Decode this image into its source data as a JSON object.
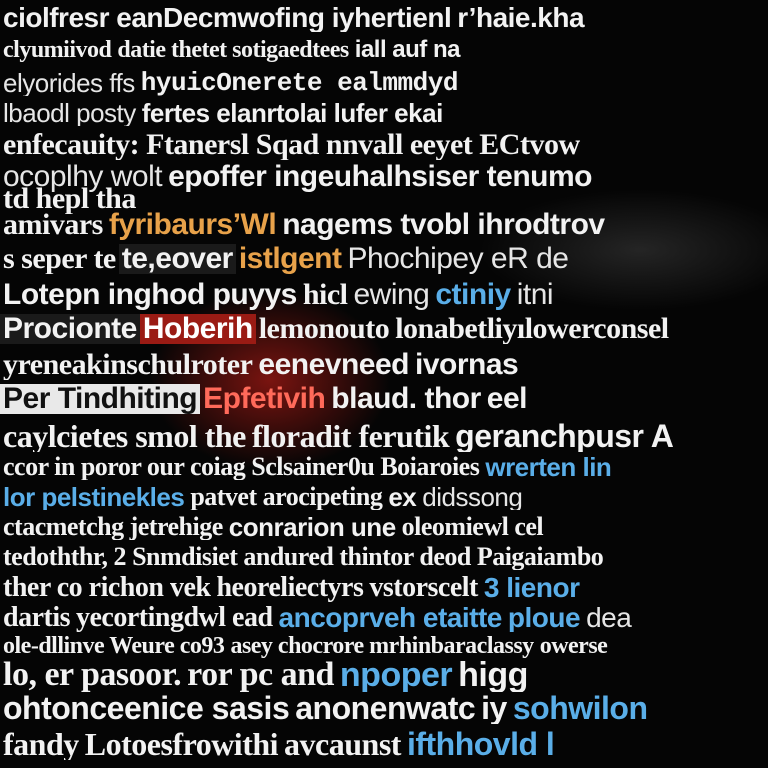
{
  "colors": {
    "background": "#050505",
    "text": "#f2f2f2",
    "accent_blue": "#5aaee8",
    "accent_orange": "#e8a24a",
    "accent_red": "#9a1b14"
  },
  "rows": [
    {
      "top": 4,
      "size": 28,
      "segments": [
        {
          "text": "ciolfresr eanDecmwofing iyhertienl",
          "style": "bold"
        },
        {
          "text": "r’haie.kha",
          "style": "bold"
        }
      ]
    },
    {
      "top": 38,
      "size": 24,
      "segments": [
        {
          "text": "clyumiivod",
          "style": "serif"
        },
        {
          "text": "datie thetet sotigaedtees",
          "style": "serif"
        },
        {
          "text": "iall auf na",
          "style": "bold"
        }
      ]
    },
    {
      "top": 70,
      "size": 26,
      "segments": [
        {
          "text": "elyorides ffs",
          "style": "light"
        },
        {
          "text": "hyuicOnerete ealmmdyd",
          "style": "mono"
        },
        {
          "text": "",
          "style": "bold"
        }
      ]
    },
    {
      "top": 100,
      "size": 26,
      "segments": [
        {
          "text": "lbaodl posty",
          "style": "light"
        },
        {
          "text": "fertes elanrtolai lufer ekai",
          "style": "bold"
        }
      ]
    },
    {
      "top": 130,
      "size": 30,
      "segments": [
        {
          "text": "enfecauity: Ftanersl Sqad nnvall eeyet ECtvow",
          "style": "serif"
        }
      ]
    },
    {
      "top": 162,
      "size": 30,
      "segments": [
        {
          "text": "ocoplhy wolt",
          "style": "light"
        },
        {
          "text": "epoffer ingeuhalhsiser tenumo",
          "style": "bold"
        }
      ]
    },
    {
      "top": 184,
      "size": 30,
      "segments": [
        {
          "text": "td hepl tha",
          "style": "serif"
        }
      ]
    },
    {
      "top": 210,
      "size": 30,
      "segments": [
        {
          "text": "amivars",
          "style": "serif"
        },
        {
          "text": "fyribaurs’Wl",
          "style": "orange"
        },
        {
          "text": "nagems tvobl ihrodtrov",
          "style": "bold"
        }
      ]
    },
    {
      "top": 244,
      "size": 30,
      "segments": [
        {
          "text": "s seper te",
          "style": "serif"
        },
        {
          "text": "te,eover",
          "style": "boxd"
        },
        {
          "text": "istlgent",
          "style": "orange"
        },
        {
          "text": "Phochipey eR de",
          "style": "light"
        }
      ]
    },
    {
      "top": 280,
      "size": 30,
      "segments": [
        {
          "text": "Lotepn inghod puyys",
          "style": "bold"
        },
        {
          "text": "hicl",
          "style": "serif"
        },
        {
          "text": "ewing",
          "style": "light"
        },
        {
          "text": "ctiniy",
          "style": "blue"
        },
        {
          "text": "itni",
          "style": "light"
        }
      ]
    },
    {
      "top": 314,
      "size": 30,
      "segments": [
        {
          "text": "Procionte",
          "style": "boxd"
        },
        {
          "text": "Hoberih",
          "style": "boxr"
        },
        {
          "text": "lemonouto",
          "style": "serif"
        },
        {
          "text": "lonabetliyılowerconsel",
          "style": "serif"
        }
      ]
    },
    {
      "top": 350,
      "size": 30,
      "segments": [
        {
          "text": "yreneakinschulroter",
          "style": "serif"
        },
        {
          "text": "eenevneed",
          "style": "bold"
        },
        {
          "text": "ivornas",
          "style": "bold"
        }
      ]
    },
    {
      "top": 384,
      "size": 30,
      "segments": [
        {
          "text": "Per Tindhiting",
          "style": "boxw"
        },
        {
          "text": "Epfetivih",
          "style": "red"
        },
        {
          "text": "blaud. thor",
          "style": "bold"
        },
        {
          "text": "eel",
          "style": "bold"
        }
      ]
    },
    {
      "top": 420,
      "size": 32,
      "segments": [
        {
          "text": "caylcietes smol the",
          "style": "serif"
        },
        {
          "text": "floradit ferutik",
          "style": "serif"
        },
        {
          "text": "geranchpusr A",
          "style": "bold"
        }
      ]
    },
    {
      "top": 454,
      "size": 26,
      "segments": [
        {
          "text": "ccor in poror our coiag",
          "style": "serif"
        },
        {
          "text": "Sclsainer0u",
          "style": "serif"
        },
        {
          "text": "Boiaroies",
          "style": "serif"
        },
        {
          "text": "wrerten lin",
          "style": "blue"
        }
      ]
    },
    {
      "top": 484,
      "size": 26,
      "segments": [
        {
          "text": "lor pelstinekles",
          "style": "blue"
        },
        {
          "text": "patvet",
          "style": "serif"
        },
        {
          "text": "arocipeting",
          "style": "serif"
        },
        {
          "text": "ex",
          "style": "bold"
        },
        {
          "text": "didssong",
          "style": "light"
        }
      ]
    },
    {
      "top": 514,
      "size": 26,
      "segments": [
        {
          "text": "ctacmetchg jetrehige",
          "style": "serif"
        },
        {
          "text": "conrarion une",
          "style": "bold"
        },
        {
          "text": "oleomiewl",
          "style": "serif"
        },
        {
          "text": "cel",
          "style": "serif"
        }
      ]
    },
    {
      "top": 544,
      "size": 26,
      "segments": [
        {
          "text": "tedoththr, 2",
          "style": "serif"
        },
        {
          "text": "Snmdisiet andured",
          "style": "serif"
        },
        {
          "text": "thintor deod",
          "style": "serif"
        },
        {
          "text": "Paigaiambo",
          "style": "serif"
        }
      ]
    },
    {
      "top": 574,
      "size": 28,
      "segments": [
        {
          "text": "ther co richon vek",
          "style": "serif"
        },
        {
          "text": "heoreliectyrs",
          "style": "serif"
        },
        {
          "text": "vstorscelt",
          "style": "serif"
        },
        {
          "text": "3 lienor",
          "style": "blue"
        }
      ]
    },
    {
      "top": 604,
      "size": 28,
      "segments": [
        {
          "text": "dartis",
          "style": "serif"
        },
        {
          "text": "yecortingdwl ead",
          "style": "serif"
        },
        {
          "text": "ancoprveh etaitte",
          "style": "blue"
        },
        {
          "text": "ploue",
          "style": "blue"
        },
        {
          "text": "dea",
          "style": "light"
        }
      ]
    },
    {
      "top": 634,
      "size": 24,
      "segments": [
        {
          "text": "ole-dllinve Weure co93",
          "style": "serif"
        },
        {
          "text": "asey chocrore mrhinbaraclassy",
          "style": "serif"
        },
        {
          "text": "owerse",
          "style": "serif"
        }
      ]
    },
    {
      "top": 658,
      "size": 34,
      "segments": [
        {
          "text": "lo, er pasoor.",
          "style": "serif"
        },
        {
          "text": "ror pc and",
          "style": "serif"
        },
        {
          "text": "npoper",
          "style": "blue"
        },
        {
          "text": "higg",
          "style": "bold"
        }
      ]
    },
    {
      "top": 692,
      "size": 32,
      "segments": [
        {
          "text": "ohtonceenice sasis",
          "style": "bold"
        },
        {
          "text": "anonenwatc",
          "style": "bold"
        },
        {
          "text": "iy",
          "style": "bold"
        },
        {
          "text": "sohwilon",
          "style": "blue"
        }
      ]
    },
    {
      "top": 728,
      "size": 32,
      "segments": [
        {
          "text": "fandy",
          "style": "serif"
        },
        {
          "text": "Lotoesfrowithi",
          "style": "serif"
        },
        {
          "text": "avcaunst",
          "style": "serif"
        },
        {
          "text": "ifthhovld l",
          "style": "blue"
        }
      ]
    }
  ]
}
